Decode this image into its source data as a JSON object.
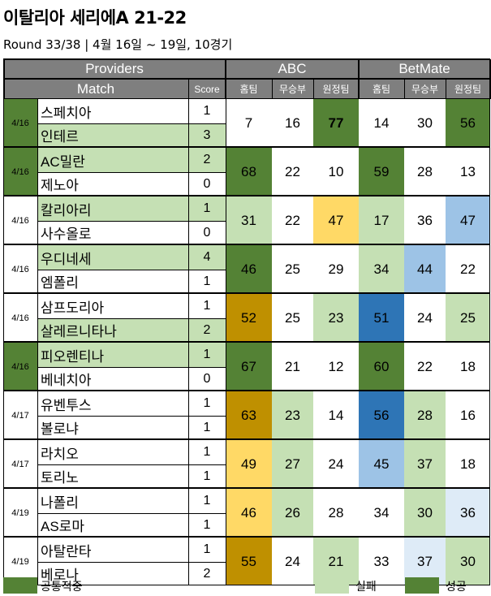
{
  "title": "이탈리아 세리에A 21-22",
  "subtitle": "Round 33/38 | 4월 16일 ~ 19일, 10경기",
  "header": {
    "providers": "Providers",
    "match": "Match",
    "score": "Score",
    "abc": "ABC",
    "betmate": "BetMate",
    "home": "홈팀",
    "draw": "무승부",
    "away": "원정팀"
  },
  "colors": {
    "header_gray": "#7f7f7f",
    "common_hit": "#548235",
    "fail": "#c5e0b4",
    "gold": "#bf9000",
    "yellow": "#ffd966",
    "blue": "#2e75b6",
    "light_blue": "#9dc3e6",
    "pale_blue": "#deebf7"
  },
  "matches": [
    {
      "date": "4/16",
      "date_fill": "common",
      "home": {
        "name": "스페치아",
        "score": "1",
        "fill": "none"
      },
      "away": {
        "name": "인테르",
        "score": "3",
        "fill": "fail"
      },
      "abc": [
        {
          "v": "7",
          "f": "none"
        },
        {
          "v": "16",
          "f": "none"
        },
        {
          "v": "77",
          "f": "green",
          "bold": true
        }
      ],
      "bm": [
        {
          "v": "14",
          "f": "none"
        },
        {
          "v": "30",
          "f": "none"
        },
        {
          "v": "56",
          "f": "green"
        }
      ]
    },
    {
      "date": "4/16",
      "date_fill": "common",
      "home": {
        "name": "AC밀란",
        "score": "2",
        "fill": "fail"
      },
      "away": {
        "name": "제노아",
        "score": "0",
        "fill": "none"
      },
      "abc": [
        {
          "v": "68",
          "f": "green"
        },
        {
          "v": "22",
          "f": "none"
        },
        {
          "v": "10",
          "f": "none"
        }
      ],
      "bm": [
        {
          "v": "59",
          "f": "green"
        },
        {
          "v": "28",
          "f": "none"
        },
        {
          "v": "13",
          "f": "none"
        }
      ]
    },
    {
      "date": "4/16",
      "date_fill": "none",
      "home": {
        "name": "칼리아리",
        "score": "1",
        "fill": "fail"
      },
      "away": {
        "name": "사수올로",
        "score": "0",
        "fill": "none"
      },
      "abc": [
        {
          "v": "31",
          "f": "fail"
        },
        {
          "v": "22",
          "f": "none"
        },
        {
          "v": "47",
          "f": "yellow"
        }
      ],
      "bm": [
        {
          "v": "17",
          "f": "fail"
        },
        {
          "v": "36",
          "f": "none"
        },
        {
          "v": "47",
          "f": "lightblue"
        }
      ]
    },
    {
      "date": "4/16",
      "date_fill": "none",
      "home": {
        "name": "우디네세",
        "score": "4",
        "fill": "fail"
      },
      "away": {
        "name": "엠폴리",
        "score": "1",
        "fill": "none"
      },
      "abc": [
        {
          "v": "46",
          "f": "green"
        },
        {
          "v": "25",
          "f": "none"
        },
        {
          "v": "29",
          "f": "none"
        }
      ],
      "bm": [
        {
          "v": "34",
          "f": "fail"
        },
        {
          "v": "44",
          "f": "lightblue"
        },
        {
          "v": "22",
          "f": "none"
        }
      ]
    },
    {
      "date": "4/16",
      "date_fill": "none",
      "home": {
        "name": "삼프도리아",
        "score": "1",
        "fill": "none"
      },
      "away": {
        "name": "살레르니타나",
        "score": "2",
        "fill": "fail"
      },
      "abc": [
        {
          "v": "52",
          "f": "gold"
        },
        {
          "v": "25",
          "f": "none"
        },
        {
          "v": "23",
          "f": "fail"
        }
      ],
      "bm": [
        {
          "v": "51",
          "f": "blue"
        },
        {
          "v": "24",
          "f": "none"
        },
        {
          "v": "25",
          "f": "fail"
        }
      ]
    },
    {
      "date": "4/16",
      "date_fill": "common",
      "home": {
        "name": "피오렌티나",
        "score": "1",
        "fill": "fail"
      },
      "away": {
        "name": "베네치아",
        "score": "0",
        "fill": "none"
      },
      "abc": [
        {
          "v": "67",
          "f": "green"
        },
        {
          "v": "21",
          "f": "none"
        },
        {
          "v": "12",
          "f": "none"
        }
      ],
      "bm": [
        {
          "v": "60",
          "f": "green"
        },
        {
          "v": "22",
          "f": "none"
        },
        {
          "v": "18",
          "f": "none"
        }
      ]
    },
    {
      "date": "4/17",
      "date_fill": "none",
      "home": {
        "name": "유벤투스",
        "score": "1",
        "fill": "none"
      },
      "away": {
        "name": "볼로냐",
        "score": "1",
        "fill": "none"
      },
      "abc": [
        {
          "v": "63",
          "f": "gold"
        },
        {
          "v": "23",
          "f": "fail"
        },
        {
          "v": "14",
          "f": "none"
        }
      ],
      "bm": [
        {
          "v": "56",
          "f": "blue"
        },
        {
          "v": "28",
          "f": "fail"
        },
        {
          "v": "16",
          "f": "none"
        }
      ]
    },
    {
      "date": "4/17",
      "date_fill": "none",
      "home": {
        "name": "라치오",
        "score": "1",
        "fill": "none"
      },
      "away": {
        "name": "토리노",
        "score": "1",
        "fill": "none"
      },
      "abc": [
        {
          "v": "49",
          "f": "yellow"
        },
        {
          "v": "27",
          "f": "fail"
        },
        {
          "v": "24",
          "f": "none"
        }
      ],
      "bm": [
        {
          "v": "45",
          "f": "lightblue"
        },
        {
          "v": "37",
          "f": "fail"
        },
        {
          "v": "18",
          "f": "none"
        }
      ]
    },
    {
      "date": "4/19",
      "date_fill": "none",
      "home": {
        "name": "나폴리",
        "score": "1",
        "fill": "none"
      },
      "away": {
        "name": "AS로마",
        "score": "1",
        "fill": "none"
      },
      "abc": [
        {
          "v": "46",
          "f": "yellow"
        },
        {
          "v": "26",
          "f": "fail"
        },
        {
          "v": "28",
          "f": "none"
        }
      ],
      "bm": [
        {
          "v": "34",
          "f": "none"
        },
        {
          "v": "30",
          "f": "fail"
        },
        {
          "v": "36",
          "f": "paleblue"
        }
      ]
    },
    {
      "date": "4/19",
      "date_fill": "none",
      "home": {
        "name": "아탈란타",
        "score": "1",
        "fill": "none"
      },
      "away": {
        "name": "베로나",
        "score": "2",
        "fill": "none"
      },
      "abc": [
        {
          "v": "55",
          "f": "gold"
        },
        {
          "v": "24",
          "f": "none"
        },
        {
          "v": "21",
          "f": "fail"
        }
      ],
      "bm": [
        {
          "v": "33",
          "f": "none"
        },
        {
          "v": "37",
          "f": "paleblue"
        },
        {
          "v": "30",
          "f": "fail"
        }
      ]
    }
  ],
  "legend": {
    "common": "공통적중",
    "fail": "실패",
    "success": "성공"
  }
}
